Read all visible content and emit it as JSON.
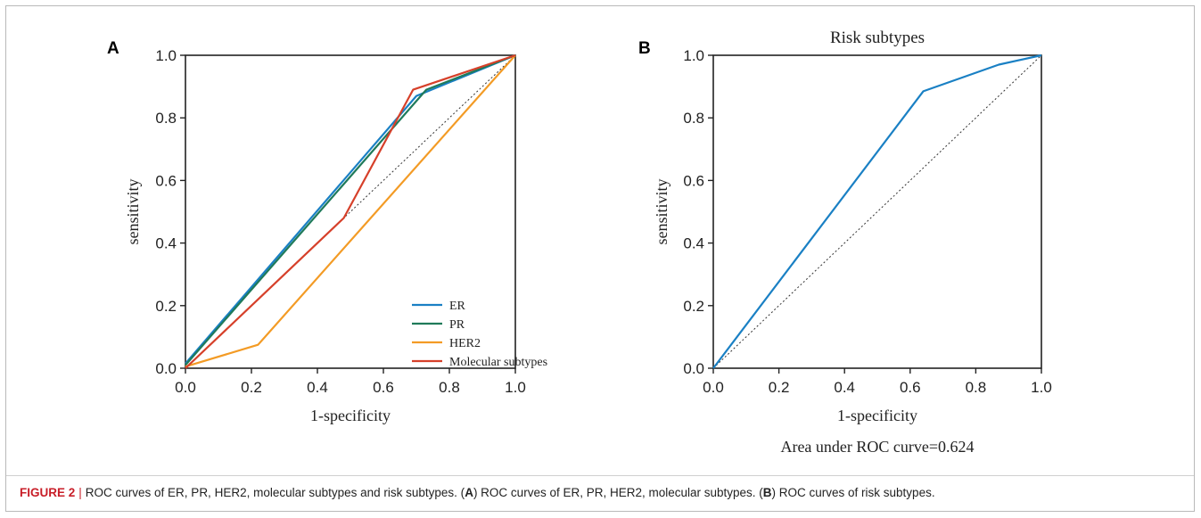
{
  "chart_data": [
    {
      "type": "line",
      "panel_label": "A",
      "title": "",
      "xlabel": "1-specificity",
      "ylabel": "sensitivity",
      "xlim": [
        0,
        1
      ],
      "ylim": [
        0,
        1
      ],
      "xticks": [
        "0.0",
        "0.2",
        "0.4",
        "0.6",
        "0.8",
        "1.0"
      ],
      "yticks": [
        "0.0",
        "0.2",
        "0.4",
        "0.6",
        "0.8",
        "1.0"
      ],
      "legend_position": "bottom-right",
      "reference_line": "diagonal-dotted",
      "series": [
        {
          "name": "ER",
          "color": "#1a80c4",
          "x": [
            0,
            0.7,
            1.0
          ],
          "y": [
            0.015,
            0.87,
            1.0
          ]
        },
        {
          "name": "PR",
          "color": "#1f7a5a",
          "x": [
            0,
            0.73,
            1.0
          ],
          "y": [
            0.01,
            0.89,
            1.0
          ]
        },
        {
          "name": "HER2",
          "color": "#f39b25",
          "x": [
            0,
            0.22,
            1.0
          ],
          "y": [
            0.005,
            0.075,
            1.0
          ]
        },
        {
          "name": "Molecular subtypes",
          "color": "#d6402a",
          "x": [
            0,
            0.22,
            0.48,
            0.69,
            1.0
          ],
          "y": [
            0,
            0.22,
            0.48,
            0.89,
            1.0
          ]
        }
      ]
    },
    {
      "type": "line",
      "panel_label": "B",
      "title": "Risk subtypes",
      "xlabel": "1-specificity",
      "ylabel": "sensitivity",
      "xlim": [
        0,
        1
      ],
      "ylim": [
        0,
        1
      ],
      "xticks": [
        "0.0",
        "0.2",
        "0.4",
        "0.6",
        "0.8",
        "1.0"
      ],
      "yticks": [
        "0.0",
        "0.2",
        "0.4",
        "0.6",
        "0.8",
        "1.0"
      ],
      "reference_line": "diagonal-dotted",
      "annotation": "Area under ROC curve=0.624",
      "series": [
        {
          "color": "#1a80c4",
          "x": [
            0,
            0.64,
            0.87,
            1.0
          ],
          "y": [
            0,
            0.885,
            0.97,
            1.0
          ]
        }
      ]
    }
  ],
  "caption": {
    "label": "FIGURE 2",
    "separator": "|",
    "text_1": "ROC curves of ER, PR, HER2, molecular subtypes and risk subtypes. (",
    "a": "A",
    "text_2": ") ROC curves of ER, PR, HER2, molecular subtypes. (",
    "b": "B",
    "text_3": ") ROC curves of risk subtypes."
  }
}
